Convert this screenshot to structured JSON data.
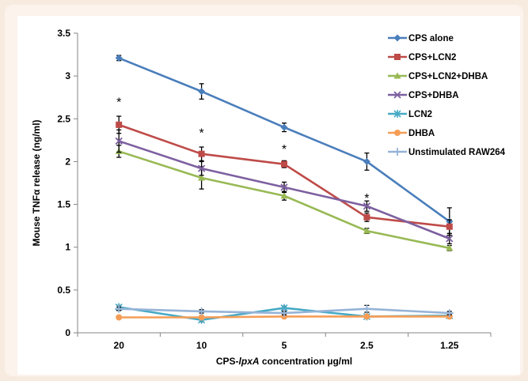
{
  "chart_data": {
    "type": "line",
    "title": "",
    "xlabel_prefix": "CPS-",
    "xlabel_italic": "lpxA",
    "xlabel_suffix": " concentration µg/ml",
    "ylabel": "Mouse TNFα release (ng/ml)",
    "categories": [
      "20",
      "10",
      "5",
      "2.5",
      "1.25"
    ],
    "ylim": [
      0,
      3.5
    ],
    "yticks": [
      "0",
      "0.5",
      "1",
      "1.5",
      "2",
      "2.5",
      "3",
      "3.5"
    ],
    "grid": false,
    "legend_position": "top-right",
    "series": [
      {
        "name": "CPS alone",
        "color": "#4a7ebb",
        "marker": "diamond",
        "values": [
          3.21,
          2.82,
          2.4,
          2.0,
          1.3
        ],
        "errors": [
          0.03,
          0.09,
          0.05,
          0.1,
          0.16
        ]
      },
      {
        "name": "CPS+LCN2",
        "color": "#be4b48",
        "marker": "square",
        "values": [
          2.43,
          2.09,
          1.97,
          1.35,
          1.24
        ],
        "errors": [
          0.1,
          0.08,
          0.04,
          0.05,
          0.08
        ]
      },
      {
        "name": "CPS+LCN2+DHBA",
        "color": "#98b954",
        "marker": "triangle",
        "values": [
          2.12,
          1.81,
          1.6,
          1.19,
          0.99
        ],
        "errors": [
          0.07,
          0.13,
          0.05,
          0.03,
          0.03
        ]
      },
      {
        "name": "CPS+DHBA",
        "color": "#7d60a0",
        "marker": "x",
        "values": [
          2.24,
          1.92,
          1.7,
          1.48,
          1.1
        ],
        "errors": [
          0.13,
          0.08,
          0.06,
          0.06,
          0.06
        ]
      },
      {
        "name": "LCN2",
        "color": "#46aac5",
        "marker": "star",
        "values": [
          0.3,
          0.15,
          0.29,
          0.19,
          0.2
        ],
        "errors": [
          0.02,
          0.02,
          0.02,
          0.02,
          0.02
        ]
      },
      {
        "name": "DHBA",
        "color": "#f59d56",
        "marker": "circle",
        "values": [
          0.18,
          0.18,
          0.19,
          0.19,
          0.19
        ],
        "errors": [
          0.01,
          0.01,
          0.01,
          0.01,
          0.01
        ]
      },
      {
        "name": "Unstimulated RAW264",
        "color": "#95b3d7",
        "marker": "plus",
        "values": [
          0.28,
          0.25,
          0.23,
          0.28,
          0.23
        ],
        "errors": [
          0.02,
          0.02,
          0.02,
          0.04,
          0.02
        ]
      }
    ],
    "annotations": [
      {
        "text": "*",
        "category": "20",
        "y": 2.7
      },
      {
        "text": "*",
        "category": "10",
        "y": 2.34
      },
      {
        "text": "*",
        "category": "5",
        "y": 2.15
      },
      {
        "text": "*",
        "category": "2.5",
        "y": 1.58
      }
    ]
  }
}
